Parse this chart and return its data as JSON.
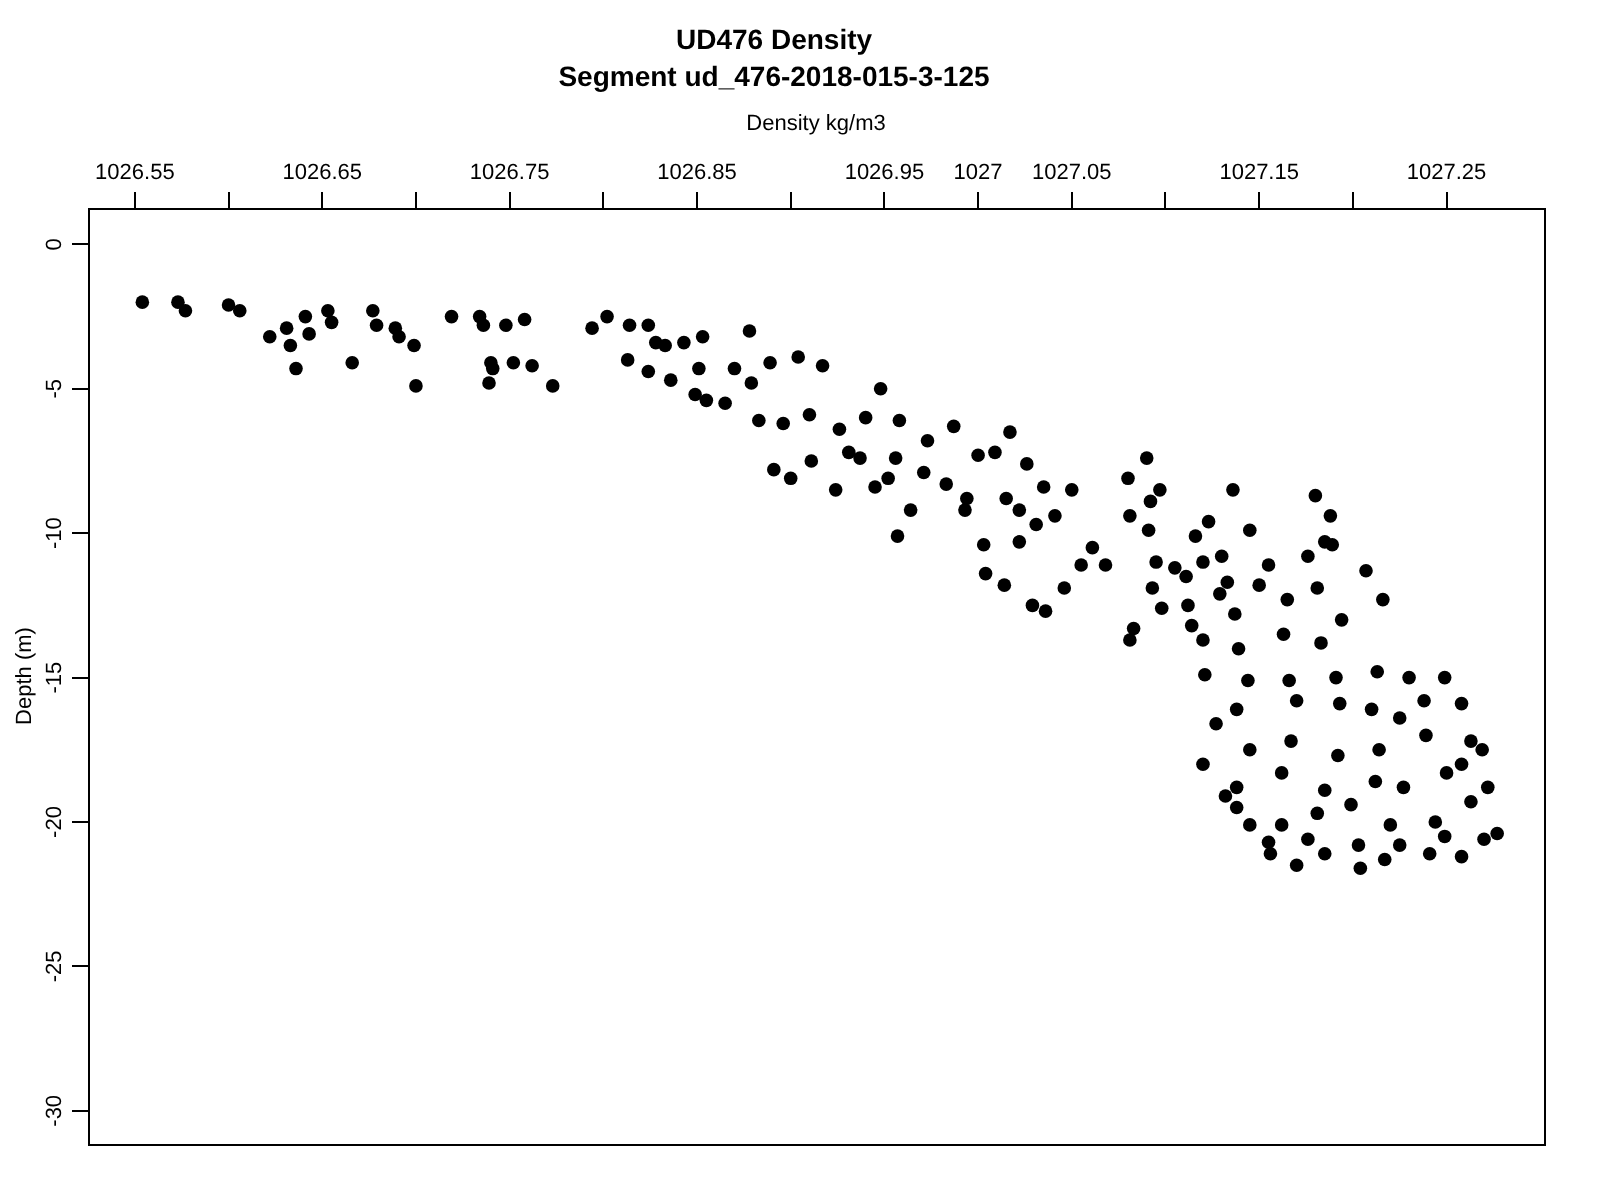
{
  "chart_data": {
    "type": "scatter",
    "title": "UD476 Density",
    "subtitle": "Segment ud_476-2018-015-3-125",
    "xlabel": "Density kg/m3",
    "ylabel": "Depth (m)",
    "xlim": [
      1026.525,
      1027.302
    ],
    "ylim": [
      -31.15,
      1.26
    ],
    "xticks": [
      1026.55,
      {
        "value": 1026.6,
        "label": null
      },
      1026.65,
      {
        "value": 1026.7,
        "label": null
      },
      1026.75,
      {
        "value": 1026.8,
        "label": null
      },
      1026.85,
      {
        "value": 1026.9,
        "label": null
      },
      1026.95,
      1027,
      1027.05,
      {
        "value": 1027.1,
        "label": null
      },
      1027.15,
      {
        "value": 1027.2,
        "label": null
      },
      1027.25
    ],
    "yticks": [
      0,
      -5,
      -10,
      -15,
      -20,
      -25,
      -30
    ],
    "grid": false,
    "legend": false,
    "marker": "circle",
    "series": [
      {
        "color": "#000000",
        "x": [
          1026.554,
          1026.573,
          1026.577,
          1026.6,
          1026.606,
          1026.622,
          1026.631,
          1026.636,
          1026.633,
          1026.641,
          1026.643,
          1026.653,
          1026.655,
          1026.666,
          1026.677,
          1026.679,
          1026.689,
          1026.691,
          1026.699,
          1026.7,
          1026.719,
          1026.734,
          1026.736,
          1026.74,
          1026.739,
          1026.741,
          1026.748,
          1026.752,
          1026.758,
          1026.762,
          1026.773,
          1026.794,
          1026.802,
          1026.813,
          1026.824,
          1026.824,
          1026.828,
          1026.836,
          1026.843,
          1026.851,
          1026.855,
          1026.814,
          1026.833,
          1026.849,
          1026.853,
          1026.865,
          1026.87,
          1026.878,
          1026.879,
          1026.889,
          1026.896,
          1026.904,
          1026.91,
          1026.917,
          1026.926,
          1026.937,
          1026.94,
          1026.948,
          1026.952,
          1026.956,
          1026.958,
          1026.971,
          1026.973,
          1026.983,
          1026.987,
          1026.993,
          1027,
          1027.003,
          1027.009,
          1027.015,
          1027.017,
          1027.022,
          1027.026,
          1027.035,
          1027.041,
          1027.05,
          1027.061,
          1027.068,
          1027.08,
          1027.09,
          1027.092,
          1027.111,
          1027.12,
          1027.133,
          1027.129,
          1027.098,
          1027.091,
          1027.081,
          1027.031,
          1027.022,
          1026.994,
          1026.964,
          1026.957,
          1026.945,
          1026.931,
          1026.924,
          1026.911,
          1026.9,
          1026.891,
          1026.883,
          1027.004,
          1027.014,
          1027.029,
          1027.036,
          1027.046,
          1027.055,
          1027.083,
          1027.081,
          1027.097,
          1027.136,
          1027.18,
          1027.123,
          1027.145,
          1027.188,
          1027.185,
          1027.095,
          1027.116,
          1027.13,
          1027.155,
          1027.176,
          1027.189,
          1027.15,
          1027.112,
          1027.114,
          1027.093,
          1027.137,
          1027.165,
          1027.207,
          1027.216,
          1027.105,
          1027.12,
          1027.139,
          1027.163,
          1027.183,
          1027.181,
          1027.194,
          1027.121,
          1027.144,
          1027.166,
          1027.191,
          1027.213,
          1027.23,
          1027.249,
          1027.138,
          1027.17,
          1027.193,
          1027.21,
          1027.225,
          1027.238,
          1027.258,
          1027.127,
          1027.145,
          1027.167,
          1027.192,
          1027.214,
          1027.239,
          1027.263,
          1027.12,
          1027.138,
          1027.162,
          1027.185,
          1027.212,
          1027.227,
          1027.25,
          1027.258,
          1027.269,
          1027.138,
          1027.162,
          1027.181,
          1027.199,
          1027.22,
          1027.244,
          1027.263,
          1027.272,
          1027.155,
          1027.176,
          1027.203,
          1027.225,
          1027.249,
          1027.27,
          1027.277,
          1027.156,
          1027.185,
          1027.217,
          1027.241,
          1027.258,
          1027.204,
          1027.17,
          1027.145,
          1027.132
        ],
        "values": [
          -2.0,
          -2.0,
          -2.3,
          -2.1,
          -2.3,
          -3.2,
          -2.9,
          -4.3,
          -3.5,
          -2.5,
          -3.1,
          -2.3,
          -2.7,
          -4.1,
          -2.3,
          -2.8,
          -2.9,
          -3.2,
          -3.5,
          -4.9,
          -2.5,
          -2.5,
          -2.8,
          -4.1,
          -4.8,
          -4.3,
          -2.8,
          -4.1,
          -2.6,
          -4.2,
          -4.9,
          -2.9,
          -2.5,
          -4.0,
          -2.8,
          -4.4,
          -3.4,
          -4.7,
          -3.4,
          -4.3,
          -5.4,
          -2.8,
          -3.5,
          -5.2,
          -3.2,
          -5.5,
          -4.3,
          -3.0,
          -4.8,
          -4.1,
          -6.2,
          -3.9,
          -5.9,
          -4.2,
          -6.4,
          -7.4,
          -6.0,
          -5.0,
          -8.1,
          -7.4,
          -6.1,
          -7.9,
          -6.8,
          -8.3,
          -6.3,
          -9.2,
          -7.3,
          -10.4,
          -7.2,
          -8.8,
          -6.5,
          -9.2,
          -7.6,
          -8.4,
          -9.4,
          -8.5,
          -10.5,
          -11.1,
          -8.1,
          -7.4,
          -8.9,
          -11.5,
          -11.0,
          -11.7,
          -12.1,
          -12.6,
          -9.9,
          -9.4,
          -9.7,
          -10.3,
          -8.8,
          -9.2,
          -10.1,
          -8.4,
          -7.2,
          -8.5,
          -7.5,
          -8.1,
          -7.8,
          -6.1,
          -11.4,
          -11.8,
          -12.5,
          -12.7,
          -11.9,
          -11.1,
          -13.3,
          -13.7,
          -8.5,
          -8.5,
          -8.7,
          -9.6,
          -9.9,
          -9.4,
          -10.3,
          -11.0,
          -10.1,
          -10.8,
          -11.1,
          -10.8,
          -10.4,
          -11.8,
          -12.5,
          -13.2,
          -11.9,
          -12.8,
          -12.3,
          -11.3,
          -12.3,
          -11.2,
          -13.7,
          -14.0,
          -13.5,
          -13.8,
          -11.9,
          -13.0,
          -14.9,
          -15.1,
          -15.1,
          -15.0,
          -14.8,
          -15.0,
          -15.0,
          -16.1,
          -15.8,
          -15.9,
          -16.1,
          -16.4,
          -15.8,
          -15.9,
          -16.6,
          -17.5,
          -17.2,
          -17.7,
          -17.5,
          -17.0,
          -17.2,
          -18.0,
          -18.8,
          -18.3,
          -18.9,
          -18.6,
          -18.8,
          -18.3,
          -18.0,
          -17.5,
          -19.5,
          -20.1,
          -19.7,
          -19.4,
          -20.1,
          -20.0,
          -19.3,
          -18.8,
          -20.7,
          -20.6,
          -20.8,
          -20.8,
          -20.5,
          -20.6,
          -20.4,
          -21.1,
          -21.1,
          -21.3,
          -21.1,
          -21.2,
          -21.6,
          -21.5,
          -20.1,
          -19.1
        ]
      }
    ]
  }
}
